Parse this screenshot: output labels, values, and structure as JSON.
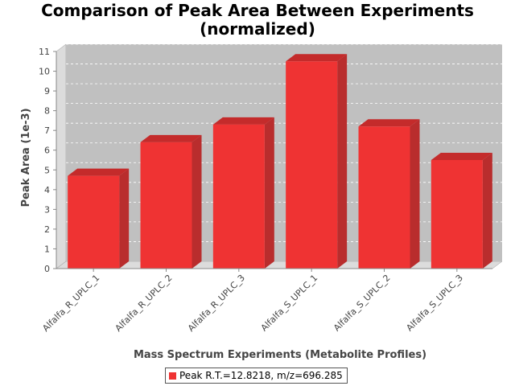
{
  "chart_data": {
    "type": "bar",
    "title_lines": [
      "Comparison of Peak Area Between Experiments",
      "(normalized)"
    ],
    "xlabel": "Mass Spectrum Experiments (Metabolite Profiles)",
    "ylabel": "Peak Area (1e-3)",
    "categories": [
      "Alfalfa_R_UPLC_1",
      "Alfalfa_R_UPLC_2",
      "Alfalfa_R_UPLC_3",
      "Alfalfa_S_UPLC_1",
      "Alfalfa_S_UPLC_2",
      "Alfalfa_S_UPLC_3"
    ],
    "series": [
      {
        "name": "Peak R.T.=12.8218, m/z=696.285",
        "values": [
          4.7,
          6.4,
          7.3,
          10.5,
          7.2,
          5.5
        ]
      }
    ],
    "ylim": [
      0,
      11
    ],
    "yticks": [
      "0",
      "1",
      "2",
      "3",
      "4",
      "5",
      "6",
      "7",
      "8",
      "9",
      "10",
      "11"
    ],
    "grid": true,
    "legend_position": "bottom",
    "three_d": true,
    "colors": {
      "bar": "#ef3333",
      "bar_side": "#b92d2d",
      "bar_top": "#c42b2b",
      "plot_bg": "#c0c0c0",
      "grid": "#ffffff"
    }
  }
}
